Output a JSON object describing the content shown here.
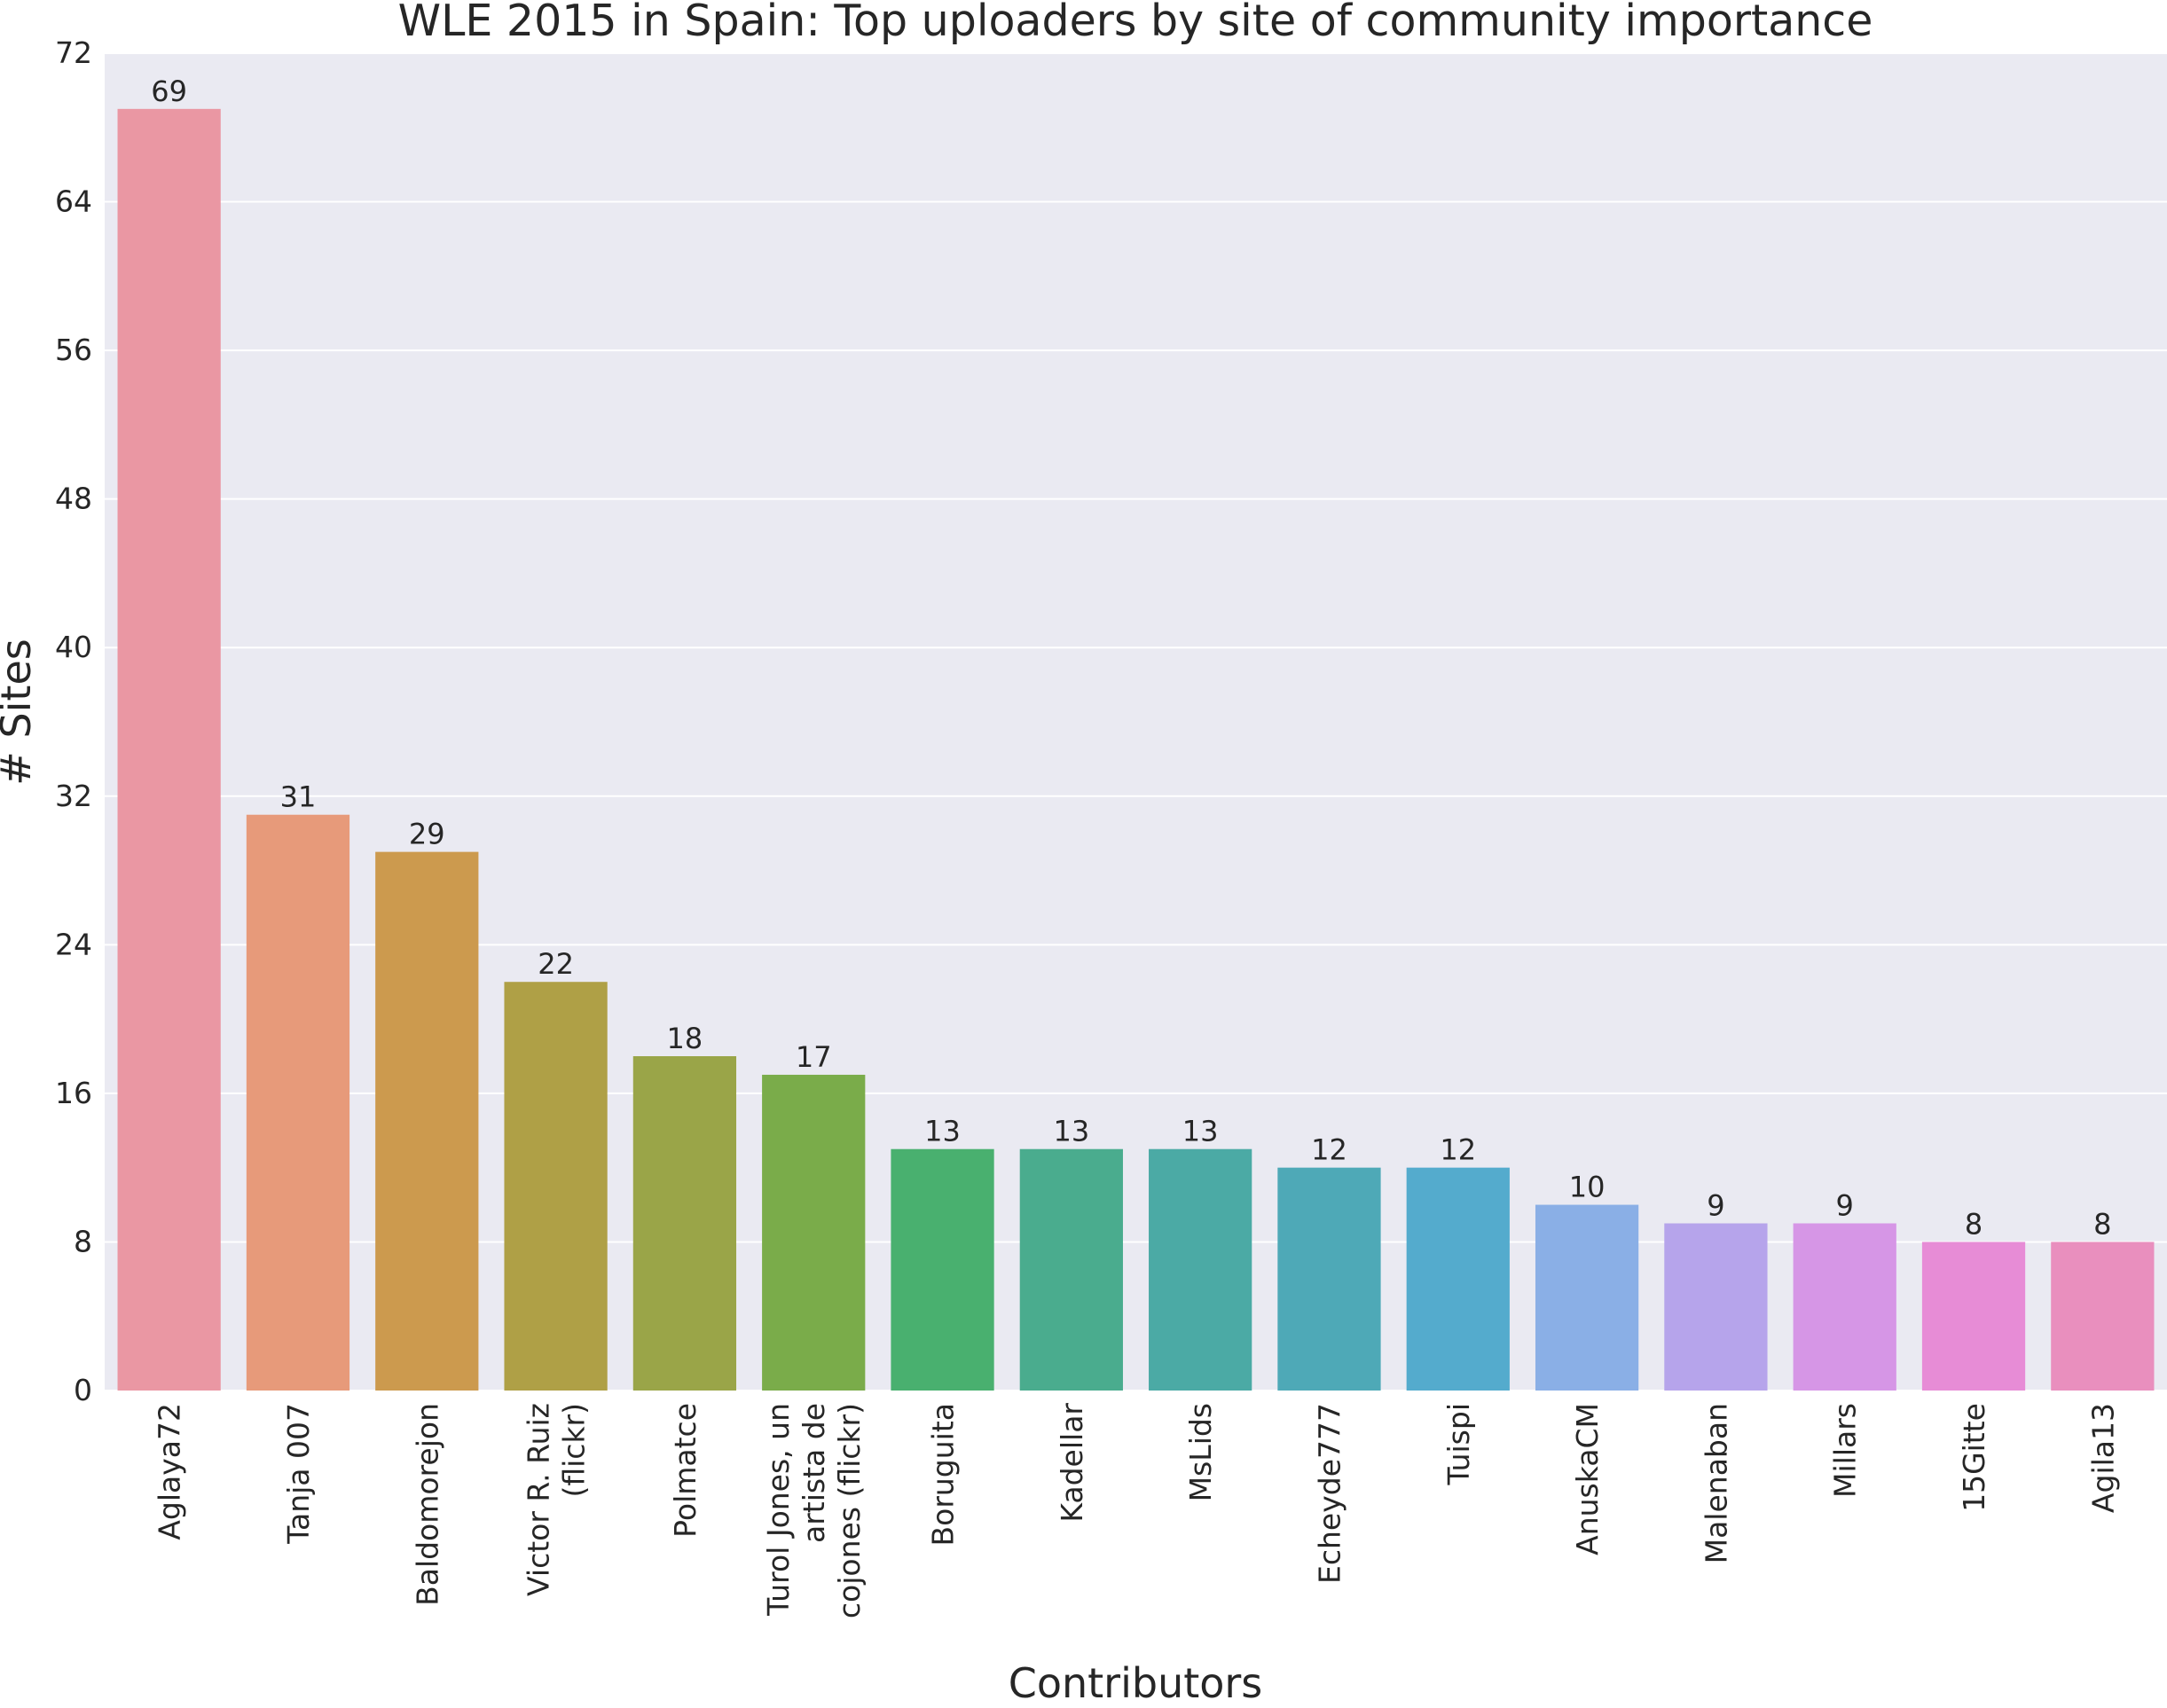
{
  "chart_data": {
    "type": "bar",
    "title": "WLE 2015 in Spain: Top uploaders by site of community importance",
    "xlabel": "Contributors",
    "ylabel": "# Sites",
    "ylim": [
      0,
      72
    ],
    "yticks": [
      0,
      8,
      16,
      24,
      32,
      40,
      48,
      56,
      64,
      72
    ],
    "grid": true,
    "legend": "none",
    "categories": [
      "Aglaya72",
      "Tanja 007",
      "Baldomorejon",
      "Victor R. Ruiz (flickr)",
      "Polmatce",
      "Turol Jones, un artista de cojones (flickr)",
      "Boruguita",
      "Kadellar",
      "MsLids",
      "Echeyde777",
      "Tuispi",
      "AnuskaCM",
      "Malenaban",
      "Millars",
      "15Gitte",
      "Agila13"
    ],
    "category_lines": [
      [
        "Aglaya72"
      ],
      [
        "Tanja 007"
      ],
      [
        "Baldomorejon"
      ],
      [
        "Victor R. Ruiz",
        "(flickr)"
      ],
      [
        "Polmatce"
      ],
      [
        "Turol Jones, un",
        "artista de",
        "cojones (flickr)"
      ],
      [
        "Boruguita"
      ],
      [
        "Kadellar"
      ],
      [
        "MsLids"
      ],
      [
        "Echeyde777"
      ],
      [
        "Tuispi"
      ],
      [
        "AnuskaCM"
      ],
      [
        "Malenaban"
      ],
      [
        "Millars"
      ],
      [
        "15Gitte"
      ],
      [
        "Agila13"
      ]
    ],
    "values": [
      69,
      31,
      29,
      22,
      18,
      17,
      13,
      13,
      13,
      12,
      12,
      10,
      9,
      9,
      8,
      8
    ],
    "colors": [
      "#ea97a3",
      "#e79a7a",
      "#cc9a4e",
      "#afa046",
      "#9aa548",
      "#7aac4a",
      "#49b06f",
      "#4aac8e",
      "#4baaa5",
      "#4ea9b7",
      "#54abcd",
      "#8aafe6",
      "#b6a4eb",
      "#d696e6",
      "#e78cd6",
      "#e98fbe"
    ],
    "plot_background": "#eaeaf2",
    "grid_color": "#ffffff"
  }
}
